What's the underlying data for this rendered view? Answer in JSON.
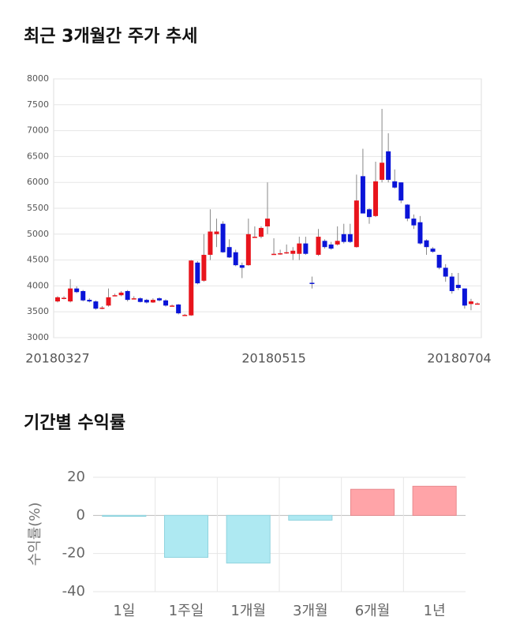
{
  "chart_data": [
    {
      "type": "candlestick",
      "title": "최근 3개월간 주가 추세",
      "categories": [
        "20180327",
        null,
        null,
        null,
        null,
        null,
        null,
        null,
        null,
        null,
        null,
        null,
        null,
        null,
        null,
        null,
        null,
        null,
        null,
        null,
        null,
        null,
        null,
        null,
        null,
        null,
        null,
        null,
        null,
        null,
        null,
        null,
        null,
        null,
        "20180515",
        null,
        null,
        null,
        null,
        null,
        null,
        null,
        null,
        null,
        null,
        null,
        null,
        null,
        null,
        null,
        null,
        null,
        null,
        null,
        null,
        null,
        null,
        null,
        null,
        null,
        null,
        null,
        null,
        null,
        null,
        null,
        "20180704"
      ],
      "open": [
        3700,
        3770,
        3700,
        3950,
        3900,
        3730,
        3700,
        3580,
        3620,
        3820,
        3820,
        3900,
        3760,
        3760,
        3730,
        3680,
        3760,
        3720,
        3620,
        3640,
        3440,
        3430,
        4450,
        4100,
        4600,
        5000,
        5200,
        4750,
        4650,
        4400,
        4400,
        4950,
        4950,
        5150,
        4620,
        4620,
        4650,
        4620,
        4620,
        4820,
        4060,
        4600,
        4870,
        4800,
        4800,
        5000,
        5000,
        4750,
        6120,
        5480,
        5350,
        6050,
        6600,
        6020,
        6000,
        5570,
        5300,
        5230,
        4880,
        4720,
        4600,
        4350,
        4180,
        4020,
        3950,
        3650,
        3660
      ],
      "high": [
        3800,
        3800,
        4130,
        3990,
        3920,
        3760,
        3720,
        3610,
        3950,
        3850,
        3900,
        3920,
        3800,
        3780,
        3750,
        3760,
        3780,
        3740,
        3640,
        3650,
        3460,
        4500,
        4480,
        5000,
        5480,
        5300,
        5250,
        4900,
        4700,
        4450,
        5300,
        5150,
        5150,
        6000,
        4920,
        4700,
        4800,
        4750,
        4950,
        4950,
        4180,
        5100,
        4900,
        4850,
        5150,
        5200,
        5200,
        6150,
        6650,
        5500,
        6400,
        7420,
        6950,
        6250,
        6000,
        5580,
        5380,
        5350,
        4900,
        4750,
        4600,
        4420,
        4250,
        4250,
        3950,
        3750,
        3680
      ],
      "low": [
        3680,
        3740,
        3680,
        3860,
        3700,
        3680,
        3540,
        3550,
        3600,
        3800,
        3800,
        3700,
        3740,
        3680,
        3660,
        3670,
        3700,
        3600,
        3600,
        3450,
        3420,
        3420,
        4030,
        4080,
        4500,
        4750,
        4640,
        4540,
        4380,
        4150,
        4390,
        4930,
        4920,
        5000,
        4600,
        4600,
        4620,
        4500,
        4500,
        4600,
        3950,
        4580,
        4720,
        4700,
        4780,
        4820,
        4830,
        4740,
        5400,
        5200,
        5330,
        6000,
        6000,
        5880,
        5600,
        5250,
        5100,
        4800,
        4600,
        4640,
        4320,
        4080,
        3850,
        3920,
        3560,
        3530,
        3640
      ],
      "close": [
        3780,
        3770,
        3950,
        3880,
        3720,
        3700,
        3560,
        3580,
        3780,
        3820,
        3870,
        3730,
        3760,
        3690,
        3680,
        3730,
        3720,
        3620,
        3620,
        3470,
        3440,
        4490,
        4050,
        4600,
        5050,
        5050,
        4650,
        4550,
        4400,
        4350,
        5000,
        4950,
        5120,
        5300,
        4620,
        4630,
        4650,
        4680,
        4820,
        4620,
        4040,
        4950,
        4750,
        4720,
        4870,
        4850,
        4850,
        5650,
        5400,
        5330,
        6020,
        6380,
        6050,
        5900,
        5650,
        5300,
        5170,
        4820,
        4750,
        4660,
        4350,
        4180,
        3900,
        3960,
        3620,
        3700,
        3660
      ],
      "up_color": "#e8141c",
      "down_color": "#0a14d8",
      "ylim": [
        3000,
        8000
      ],
      "yticks": [
        3000,
        3500,
        4000,
        4500,
        5000,
        5500,
        6000,
        6500,
        7000,
        7500,
        8000
      ],
      "grid": true
    },
    {
      "type": "bar",
      "title": "기간별 수익률",
      "ylabel": "수익률(%)",
      "categories": [
        "1일",
        "1주일",
        "1개월",
        "3개월",
        "6개월",
        "1년"
      ],
      "values": [
        -0.5,
        -22,
        -25,
        -2.5,
        13.7,
        15.3
      ],
      "colors": [
        "#aee9f2",
        "#aee9f2",
        "#aee9f2",
        "#aee9f2",
        "#ffa4a8",
        "#ffa4a8"
      ],
      "ylim": [
        -40,
        20
      ],
      "yticks": [
        -40,
        -20,
        0,
        20
      ],
      "grid": true
    }
  ]
}
